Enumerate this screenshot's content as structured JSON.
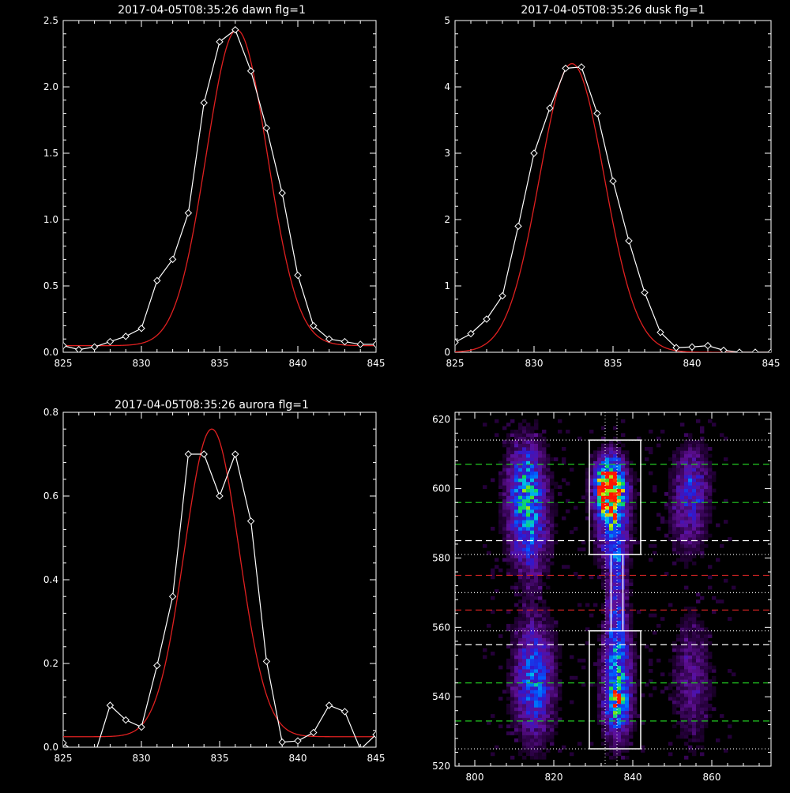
{
  "colors": {
    "background": "#000000",
    "axes": "#ffffff",
    "data": "#ffffff",
    "fit": "#e02020",
    "green_lines": "#22cc22",
    "red_lines": "#cc2222",
    "white_lines": "#ffffff"
  },
  "chart_data": [
    {
      "type": "line",
      "title": "2017-04-05T08:35:26 dawn flg=1",
      "xlim": [
        825,
        845
      ],
      "ylim": [
        0,
        2.5
      ],
      "xticks": [
        825,
        830,
        835,
        840,
        845
      ],
      "yticks": [
        "0.0",
        "0.5",
        "1.0",
        "1.5",
        "2.0",
        "2.5"
      ],
      "series": [
        {
          "x": [
            825,
            826,
            827,
            828,
            829,
            830,
            831,
            832,
            833,
            834,
            835,
            836,
            837,
            838,
            839,
            840,
            841,
            842,
            843,
            844,
            845
          ],
          "y": [
            0.05,
            0.02,
            0.04,
            0.08,
            0.12,
            0.18,
            0.54,
            0.7,
            1.05,
            1.88,
            2.34,
            2.43,
            2.12,
            1.69,
            1.2,
            0.58,
            0.2,
            0.1,
            0.08,
            0.06,
            0.06
          ]
        },
        {
          "fit": {
            "amp": 2.38,
            "center": 836.1,
            "sigma": 1.95,
            "base": 0.05
          }
        }
      ]
    },
    {
      "type": "line",
      "title": "2017-04-05T08:35:26 dusk flg=1",
      "xlim": [
        825,
        845
      ],
      "ylim": [
        0,
        5
      ],
      "xticks": [
        825,
        830,
        835,
        840,
        845
      ],
      "yticks": [
        "0",
        "1",
        "2",
        "3",
        "4",
        "5"
      ],
      "series": [
        {
          "x": [
            825,
            826,
            827,
            828,
            829,
            830,
            831,
            832,
            833,
            834,
            835,
            836,
            837,
            838,
            839,
            840,
            841,
            842,
            843,
            844,
            845
          ],
          "y": [
            0.15,
            0.28,
            0.5,
            0.85,
            1.9,
            3.0,
            3.68,
            4.28,
            4.3,
            3.6,
            2.58,
            1.68,
            0.9,
            0.3,
            0.07,
            0.08,
            0.1,
            0.03,
            0.0,
            0.0,
            0.0
          ]
        },
        {
          "fit": {
            "amp": 4.35,
            "center": 832.4,
            "sigma": 2.05,
            "base": 0.0
          }
        }
      ]
    },
    {
      "type": "line",
      "title": "2017-04-05T08:35:26 aurora flg=1",
      "xlim": [
        825,
        845
      ],
      "ylim": [
        0,
        0.8
      ],
      "xticks": [
        825,
        830,
        835,
        840,
        845
      ],
      "yticks": [
        "0.0",
        "0.2",
        "0.4",
        "0.6",
        "0.8"
      ],
      "series": [
        {
          "x": [
            825,
            826,
            827,
            828,
            829,
            830,
            831,
            832,
            833,
            834,
            835,
            836,
            837,
            838,
            839,
            840,
            841,
            842,
            843,
            844,
            845
          ],
          "y": [
            0.01,
            -0.02,
            -0.02,
            0.1,
            0.065,
            0.048,
            0.195,
            0.36,
            0.7,
            0.7,
            0.6,
            0.7,
            0.54,
            0.205,
            0.012,
            0.015,
            0.035,
            0.1,
            0.085,
            -0.005,
            0.03
          ]
        },
        {
          "fit": {
            "amp": 0.735,
            "center": 834.5,
            "sigma": 1.75,
            "base": 0.025
          }
        }
      ]
    },
    {
      "type": "heatmap",
      "title": "",
      "xlim": [
        795,
        875
      ],
      "ylim": [
        520,
        622
      ],
      "xticks": [
        800,
        820,
        840,
        860
      ],
      "yticks": [
        520,
        540,
        560,
        580,
        600,
        620
      ],
      "blobs": [
        {
          "cx": 813,
          "cy": 600,
          "sx": 3.2,
          "sy": 9,
          "amp": 0.55
        },
        {
          "cx": 814,
          "cy": 585,
          "sx": 3.2,
          "sy": 8,
          "amp": 0.3
        },
        {
          "cx": 815,
          "cy": 545,
          "sx": 3.2,
          "sy": 11,
          "amp": 0.5
        },
        {
          "cx": 834,
          "cy": 601,
          "sx": 2.4,
          "sy": 5,
          "amp": 1.0
        },
        {
          "cx": 835,
          "cy": 592,
          "sx": 2.6,
          "sy": 9,
          "amp": 0.55
        },
        {
          "cx": 836,
          "cy": 570,
          "sx": 1.6,
          "sy": 12,
          "amp": 0.3
        },
        {
          "cx": 836,
          "cy": 545,
          "sx": 2.4,
          "sy": 11,
          "amp": 0.55
        },
        {
          "cx": 836,
          "cy": 538,
          "sx": 2.0,
          "sy": 4,
          "amp": 0.35
        },
        {
          "cx": 855,
          "cy": 602,
          "sx": 3.0,
          "sy": 7,
          "amp": 0.3
        },
        {
          "cx": 854,
          "cy": 590,
          "sx": 3.0,
          "sy": 7,
          "amp": 0.18
        },
        {
          "cx": 855,
          "cy": 545,
          "sx": 3.2,
          "sy": 12,
          "amp": 0.2
        }
      ],
      "green_dashed_y": [
        607,
        596,
        544,
        533
      ],
      "red_dashed_y": [
        575,
        565
      ],
      "white_dashed_y": [
        585,
        555
      ],
      "white_dotted_y": [
        614,
        581,
        570,
        559,
        525
      ],
      "vertical_dotted_x": [
        833,
        836
      ],
      "boxes": [
        {
          "x0": 829,
          "x1": 842,
          "y0": 581,
          "y1": 614
        },
        {
          "x0": 829,
          "x1": 842,
          "y0": 525,
          "y1": 559
        },
        {
          "x0": 834.5,
          "x1": 837.5,
          "y0": 559,
          "y1": 581
        }
      ]
    }
  ]
}
